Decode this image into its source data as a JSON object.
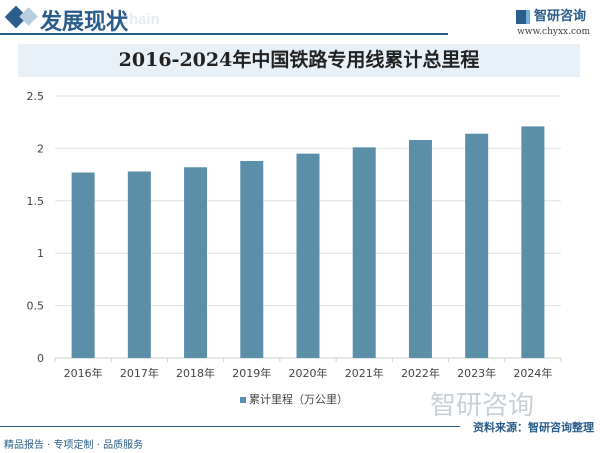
{
  "header": {
    "title": "发展现状",
    "ghost_text": "Chain",
    "brand": "智研咨询",
    "url": "www.chyxx.com"
  },
  "footer": {
    "watermark": "智研咨询",
    "source": "资料来源：智研咨询整理",
    "slogan": "精品报告 · 专项定制 · 品质服务"
  },
  "chart_data": {
    "type": "bar",
    "title": "2016-2024年中国铁路专用线累计总里程",
    "categories": [
      "2016年",
      "2017年",
      "2018年",
      "2019年",
      "2020年",
      "2021年",
      "2022年",
      "2023年",
      "2024年"
    ],
    "series": [
      {
        "name": "累计里程（万公里）",
        "values": [
          1.77,
          1.78,
          1.82,
          1.88,
          1.95,
          2.01,
          2.08,
          2.14,
          2.21
        ],
        "color": "#5b8fa8"
      }
    ],
    "yticks": [
      "0",
      "0.5",
      "1",
      "1.5",
      "2",
      "2.5"
    ],
    "ylim": [
      0,
      2.5
    ],
    "grid": true,
    "legend": "bottom"
  }
}
